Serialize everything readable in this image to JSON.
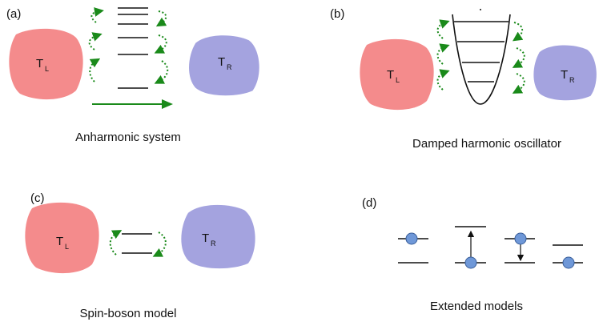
{
  "panels": [
    {
      "label": "(a)",
      "caption": "Anharmonic system",
      "left": {
        "main": "T",
        "sub": "L"
      },
      "right": {
        "main": "T",
        "sub": "R"
      }
    },
    {
      "label": "(b)",
      "caption": "Damped harmonic oscillator",
      "left": {
        "main": "T",
        "sub": "L"
      },
      "right": {
        "main": "T",
        "sub": "R"
      }
    },
    {
      "label": "(c)",
      "caption": "Spin-boson model",
      "left": {
        "main": "T",
        "sub": "L"
      },
      "right": {
        "main": "T",
        "sub": "R"
      }
    },
    {
      "label": "(d)",
      "caption": "Extended models"
    }
  ]
}
